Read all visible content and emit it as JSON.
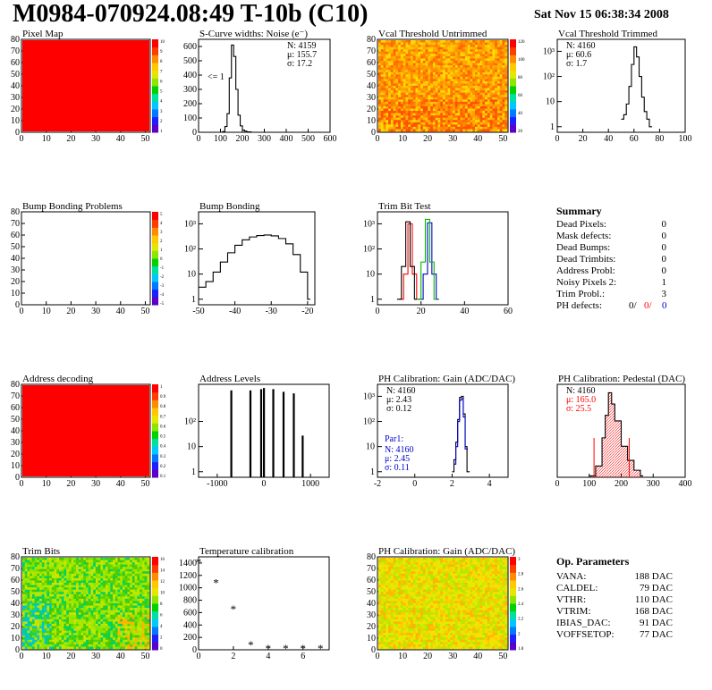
{
  "header": {
    "title": "M0984-070924.08:49 T-10b (C10)",
    "date": "Sat Nov 15 06:38:34 2008"
  },
  "colors": {
    "red": "#ff0000",
    "blue": "#0000cc",
    "green": "#00bb00",
    "black": "#000000",
    "palette": [
      "#5a00c8",
      "#1e1eff",
      "#0078ff",
      "#00c8ff",
      "#00e0a0",
      "#00d200",
      "#8ce600",
      "#e6e600",
      "#ffc800",
      "#ff8c00",
      "#ff3c00",
      "#ff0000"
    ]
  },
  "chart_data": [
    {
      "id": "pixel-map",
      "type": "heatmap",
      "title": "Pixel Map",
      "fill": "uniform-red",
      "xlim": [
        0,
        52
      ],
      "ylim": [
        0,
        80
      ],
      "xticks": [
        "0",
        "10",
        "20",
        "30",
        "40",
        "50"
      ],
      "yticks": [
        "0",
        "10",
        "20",
        "30",
        "40",
        "50",
        "60",
        "70",
        "80"
      ],
      "zticks": [
        "10",
        "9",
        "8",
        "7",
        "6",
        "5",
        "4",
        "3",
        "2",
        "1"
      ]
    },
    {
      "id": "scurve-noise",
      "type": "line",
      "title": "S-Curve widths: Noise (e⁻)",
      "xlim": [
        0,
        600
      ],
      "ylim": [
        0,
        650
      ],
      "xticks": [
        "0",
        "100",
        "200",
        "300",
        "400",
        "500",
        "600"
      ],
      "yticks": [
        "0",
        "100",
        "200",
        "300",
        "400",
        "500",
        "600"
      ],
      "stats": [
        "N: 4159",
        "μ: 155.7",
        "σ: 17.2"
      ],
      "annotation": "<= 1",
      "x": [
        95,
        110,
        120,
        130,
        140,
        150,
        160,
        170,
        180,
        190,
        200,
        210,
        220,
        240
      ],
      "y": [
        0,
        5,
        40,
        130,
        380,
        610,
        530,
        300,
        120,
        45,
        15,
        8,
        3,
        0
      ]
    },
    {
      "id": "vcal-untrimmed",
      "type": "heatmap",
      "title": "Vcal Threshold Untrimmed",
      "xlim": [
        0,
        52
      ],
      "ylim": [
        0,
        80
      ],
      "xticks": [
        "0",
        "10",
        "20",
        "30",
        "40",
        "50"
      ],
      "yticks": [
        "0",
        "10",
        "20",
        "30",
        "40",
        "50",
        "60",
        "70",
        "80"
      ],
      "zticks": [
        "120",
        "100",
        "80",
        "60",
        "40",
        "20"
      ],
      "fill": "noise-orange"
    },
    {
      "id": "vcal-trimmed",
      "type": "line",
      "title": "Vcal Threshold Trimmed",
      "logy": true,
      "xlim": [
        0,
        100
      ],
      "xticks": [
        "0",
        "20",
        "40",
        "60",
        "80",
        "100"
      ],
      "yticks": [
        "1",
        "10",
        "10²",
        "10³"
      ],
      "stats": [
        "N: 4160",
        "μ: 60.6",
        "σ: 1.7"
      ],
      "x": [
        50,
        52,
        54,
        56,
        58,
        60,
        62,
        64,
        66,
        68,
        70,
        72
      ],
      "y": [
        2,
        3,
        8,
        40,
        300,
        1500,
        600,
        100,
        15,
        4,
        2,
        1
      ]
    },
    {
      "id": "bump-problems",
      "type": "heatmap",
      "title": "Bump Bonding Problems",
      "fill": "empty",
      "xlim": [
        0,
        52
      ],
      "ylim": [
        0,
        80
      ],
      "xticks": [
        "0",
        "10",
        "20",
        "30",
        "40",
        "50"
      ],
      "yticks": [
        "0",
        "10",
        "20",
        "30",
        "40",
        "50",
        "60",
        "70",
        "80"
      ],
      "zticks": [
        "5",
        "4",
        "3",
        "2",
        "1",
        "0",
        "-1",
        "-2",
        "-3",
        "-4",
        "-5"
      ]
    },
    {
      "id": "bump-bonding",
      "type": "line",
      "title": "Bump Bonding",
      "logy": true,
      "xlim": [
        -50,
        -18
      ],
      "xticks": [
        "-50",
        "-40",
        "-30",
        "-20"
      ],
      "yticks": [
        "1",
        "10",
        "10²",
        "10³"
      ],
      "x": [
        -50,
        -48,
        -46,
        -44,
        -42,
        -40,
        -38,
        -36,
        -34,
        -32,
        -30,
        -28,
        -26,
        -24,
        -22,
        -20
      ],
      "y": [
        3,
        5,
        12,
        30,
        70,
        140,
        230,
        300,
        340,
        360,
        330,
        260,
        160,
        60,
        12,
        1
      ]
    },
    {
      "id": "trim-bit-test",
      "type": "line",
      "title": "Trim Bit Test",
      "logy": true,
      "xlim": [
        0,
        60
      ],
      "xticks": [
        "0",
        "20",
        "40",
        "60"
      ],
      "yticks": [
        "1",
        "10",
        "10²",
        "10³"
      ],
      "series": [
        {
          "color": "red",
          "x": [
            10,
            12,
            14,
            16,
            18
          ],
          "y": [
            1,
            10,
            1000,
            10,
            1
          ]
        },
        {
          "color": "blue",
          "x": [
            19,
            21,
            23,
            25,
            27
          ],
          "y": [
            1,
            10,
            1100,
            10,
            1
          ]
        },
        {
          "color": "black",
          "x": [
            9,
            11,
            13,
            15,
            17
          ],
          "y": [
            1,
            20,
            1200,
            20,
            1
          ]
        },
        {
          "color": "green",
          "x": [
            18,
            20,
            22,
            24,
            26
          ],
          "y": [
            1,
            30,
            1500,
            30,
            1
          ]
        }
      ]
    },
    {
      "id": "address-decoding",
      "type": "heatmap",
      "title": "Address decoding",
      "fill": "uniform-red",
      "xlim": [
        0,
        52
      ],
      "ylim": [
        0,
        80
      ],
      "xticks": [
        "0",
        "10",
        "20",
        "30",
        "40",
        "50"
      ],
      "yticks": [
        "0",
        "10",
        "20",
        "30",
        "40",
        "50",
        "60",
        "70",
        "80"
      ],
      "zticks": [
        "1",
        "0.9",
        "0.8",
        "0.7",
        "0.6",
        "0.5",
        "0.4",
        "0.3",
        "0.2",
        "0.1"
      ]
    },
    {
      "id": "address-levels",
      "type": "bar",
      "title": "Address Levels",
      "logy": true,
      "xlim": [
        -1400,
        1400
      ],
      "xticks": [
        "-1000",
        "0",
        "1000"
      ],
      "yticks": [
        "1",
        "10",
        "10²"
      ],
      "x": [
        -700,
        -290,
        -60,
        0,
        200,
        420,
        640,
        830
      ],
      "values": [
        900,
        900,
        1000,
        1100,
        1000,
        800,
        700,
        20
      ]
    },
    {
      "id": "ph-gain-hist",
      "type": "line",
      "title": "PH Calibration: Gain (ADC/DAC)",
      "logy": true,
      "xlim": [
        -2,
        5
      ],
      "xticks": [
        "-2",
        "0",
        "2",
        "4"
      ],
      "yticks": [
        "1",
        "10",
        "10²",
        "10³"
      ],
      "stats": [
        "N: 4160",
        "μ: 2.43",
        "σ: 0.12"
      ],
      "fit_label": "Par1:",
      "fit_stats": [
        "N: 4160",
        "μ: 2.45",
        "σ: 0.11"
      ],
      "x": [
        2.0,
        2.1,
        2.2,
        2.3,
        2.4,
        2.5,
        2.6,
        2.7,
        2.8
      ],
      "y": [
        1,
        3,
        15,
        120,
        900,
        1000,
        200,
        10,
        1
      ]
    },
    {
      "id": "ph-pedestal",
      "type": "line",
      "title": "PH Calibration: Pedestal (DAC)",
      "xlim": [
        0,
        400
      ],
      "ylim": [
        0,
        330
      ],
      "xticks": [
        "0",
        "100",
        "200",
        "300",
        "400"
      ],
      "stats": [
        "N: 4160"
      ],
      "fit_stats": [
        "μ: 165.0",
        "σ: 25.5"
      ],
      "x": [
        100,
        120,
        140,
        150,
        160,
        170,
        180,
        200,
        220,
        240,
        260
      ],
      "y": [
        5,
        40,
        140,
        220,
        300,
        260,
        200,
        110,
        60,
        25,
        5
      ]
    },
    {
      "id": "trim-bits",
      "type": "heatmap",
      "title": "Trim Bits",
      "fill": "noise-green",
      "xlim": [
        0,
        52
      ],
      "ylim": [
        0,
        80
      ],
      "xticks": [
        "0",
        "10",
        "20",
        "30",
        "40",
        "50"
      ],
      "yticks": [
        "0",
        "10",
        "20",
        "30",
        "40",
        "50",
        "60",
        "70",
        "80"
      ],
      "zticks": [
        "16",
        "14",
        "12",
        "10",
        "8",
        "6",
        "4",
        "2",
        "0"
      ]
    },
    {
      "id": "temp-calibration",
      "type": "scatter",
      "title": "Temperature calibration",
      "xlim": [
        0,
        7.5
      ],
      "ylim": [
        0,
        1500
      ],
      "xticks": [
        "0",
        "2",
        "4",
        "6"
      ],
      "yticks": [
        "0",
        "200",
        "400",
        "600",
        "800",
        "1000",
        "1200",
        "1400"
      ],
      "x": [
        0,
        1,
        2,
        3,
        4,
        5,
        6,
        7
      ],
      "y": [
        1420,
        1090,
        660,
        90,
        30,
        30,
        30,
        30
      ]
    },
    {
      "id": "ph-gain-map",
      "type": "heatmap",
      "title": "PH Calibration: Gain (ADC/DAC)",
      "fill": "noise-yellow",
      "xlim": [
        0,
        52
      ],
      "ylim": [
        0,
        80
      ],
      "xticks": [
        "0",
        "10",
        "20",
        "30",
        "40",
        "50"
      ],
      "yticks": [
        "0",
        "10",
        "20",
        "30",
        "40",
        "50",
        "60",
        "70",
        "80"
      ],
      "zticks": [
        "3",
        "2.8",
        "2.6",
        "2.4",
        "2.2",
        "2",
        "1.8"
      ]
    }
  ],
  "summary": {
    "title": "Summary",
    "rows": [
      {
        "label": "Dead Pixels:",
        "value": "0"
      },
      {
        "label": "Mask defects:",
        "value": "0"
      },
      {
        "label": "Dead Bumps:",
        "value": "0"
      },
      {
        "label": "Dead Trimbits:",
        "value": "0"
      },
      {
        "label": "Address Probl:",
        "value": "0"
      },
      {
        "label": "Noisy Pixels 2:",
        "value": "1"
      },
      {
        "label": "Trim Probl.:",
        "value": "3"
      }
    ],
    "ph_label": "PH defects:",
    "ph_values": [
      "0/",
      "0/",
      "0"
    ]
  },
  "parameters": {
    "title": "Op. Parameters",
    "rows": [
      {
        "label": "VANA:",
        "value": "188 DAC"
      },
      {
        "label": "CALDEL:",
        "value": "79 DAC"
      },
      {
        "label": "VTHR:",
        "value": "110 DAC"
      },
      {
        "label": "VTRIM:",
        "value": "168 DAC"
      },
      {
        "label": "IBIAS_DAC:",
        "value": "91 DAC"
      },
      {
        "label": "VOFFSETOP:",
        "value": "77 DAC"
      }
    ]
  }
}
